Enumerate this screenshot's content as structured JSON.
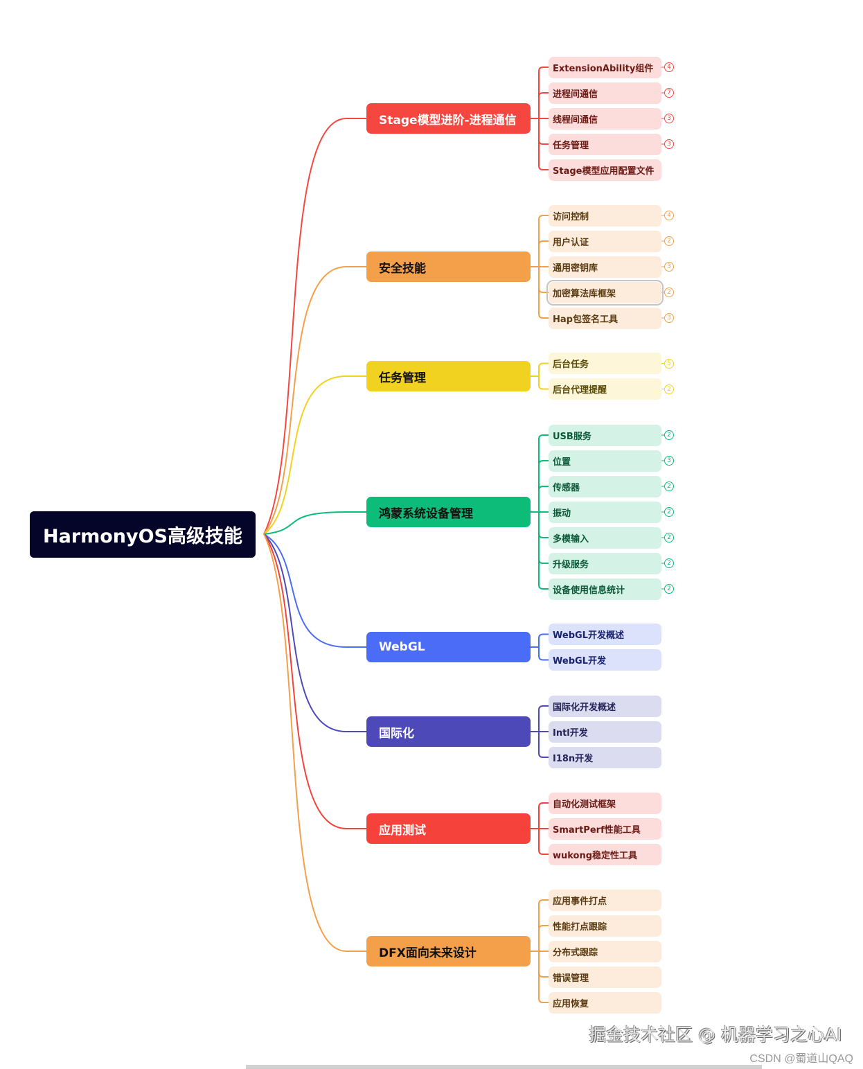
{
  "root": {
    "label": "HarmonyOS高级技能"
  },
  "branches": [
    {
      "label": "Stage模型进阶-进程通信",
      "color": "#f5473f",
      "text_color": "#ffffff",
      "leaf_bg": "#fddcdc",
      "leaf_text": "#6b1a14",
      "children": [
        {
          "label": "ExtensionAbility组件",
          "count": "4"
        },
        {
          "label": "进程间通信",
          "count": "7"
        },
        {
          "label": "线程间通信",
          "count": "3"
        },
        {
          "label": "任务管理",
          "count": "3"
        },
        {
          "label": "Stage模型应用配置文件"
        }
      ]
    },
    {
      "label": "安全技能",
      "color": "#f4a04a",
      "text_color": "#111111",
      "leaf_bg": "#fdecdc",
      "leaf_text": "#5a3a10",
      "children": [
        {
          "label": "访问控制",
          "count": "4"
        },
        {
          "label": "用户认证",
          "count": "2"
        },
        {
          "label": "通用密钥库",
          "count": "3"
        },
        {
          "label": "加密算法库框架",
          "count": "2",
          "selected": true
        },
        {
          "label": "Hap包签名工具",
          "count": "3"
        }
      ]
    },
    {
      "label": "任务管理",
      "color": "#f2d221",
      "text_color": "#111111",
      "leaf_bg": "#fdf6d8",
      "leaf_text": "#5a4a08",
      "children": [
        {
          "label": "后台任务",
          "count": "5"
        },
        {
          "label": "后台代理提醒",
          "count": "2"
        }
      ]
    },
    {
      "label": "鸿蒙系统设备管理",
      "color": "#0dbc79",
      "text_color": "#111111",
      "leaf_bg": "#d4f3e6",
      "leaf_text": "#0c5a3a",
      "children": [
        {
          "label": "USB服务",
          "count": "2"
        },
        {
          "label": "位置",
          "count": "3"
        },
        {
          "label": "传感器",
          "count": "2"
        },
        {
          "label": "振动",
          "count": "2"
        },
        {
          "label": "多模输入",
          "count": "2"
        },
        {
          "label": "升级服务",
          "count": "2"
        },
        {
          "label": "设备使用信息统计",
          "count": "2"
        }
      ]
    },
    {
      "label": "WebGL",
      "color": "#4a6cf7",
      "text_color": "#ffffff",
      "leaf_bg": "#dce2fc",
      "leaf_text": "#1a2370",
      "children": [
        {
          "label": "WebGL开发概述"
        },
        {
          "label": "WebGL开发"
        }
      ]
    },
    {
      "label": "国际化",
      "color": "#4e49b8",
      "text_color": "#ffffff",
      "leaf_bg": "#dcdcf0",
      "leaf_text": "#25245a",
      "children": [
        {
          "label": "国际化开发概述"
        },
        {
          "label": "Intl开发"
        },
        {
          "label": "I18n开发"
        }
      ]
    },
    {
      "label": "应用测试",
      "color": "#f5433c",
      "text_color": "#ffffff",
      "leaf_bg": "#fddcdc",
      "leaf_text": "#6b1a14",
      "children": [
        {
          "label": "自动化测试框架"
        },
        {
          "label": "SmartPerf性能工具"
        },
        {
          "label": "wukong稳定性工具"
        }
      ]
    },
    {
      "label": "DFX面向未来设计",
      "color": "#f4a04a",
      "text_color": "#111111",
      "leaf_bg": "#fdecdc",
      "leaf_text": "#5a3a10",
      "children": [
        {
          "label": "应用事件打点"
        },
        {
          "label": "性能打点跟踪"
        },
        {
          "label": "分布式跟踪"
        },
        {
          "label": "错误管理"
        },
        {
          "label": "应用恢复"
        }
      ]
    }
  ],
  "watermark": {
    "main": "掘金技术社区 @ 机器学习之心AI",
    "csdn": "CSDN @蜀道山QAQ"
  }
}
